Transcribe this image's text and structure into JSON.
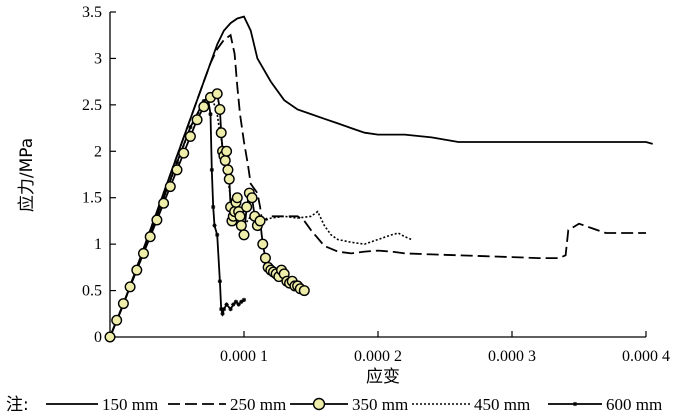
{
  "chart_data": {
    "type": "line",
    "xlabel": "应变",
    "ylabel": "应力/MPa",
    "xlim": [
      0,
      0.0004
    ],
    "ylim": [
      0,
      3.5
    ],
    "x_ticks": [
      {
        "value": 0.0001,
        "label": "0.000 1"
      },
      {
        "value": 0.0002,
        "label": "0.000 2"
      },
      {
        "value": 0.0003,
        "label": "0.000 3"
      },
      {
        "value": 0.0004,
        "label": "0.000 4"
      }
    ],
    "y_ticks": [
      {
        "value": 0,
        "label": "0"
      },
      {
        "value": 0.5,
        "label": "0.5"
      },
      {
        "value": 1,
        "label": "1"
      },
      {
        "value": 1.5,
        "label": "1.5"
      },
      {
        "value": 2,
        "label": "2"
      },
      {
        "value": 2.5,
        "label": "2.5"
      },
      {
        "value": 3,
        "label": "3"
      },
      {
        "value": 3.5,
        "label": "3.5"
      }
    ],
    "grid": false,
    "legend_prefix": "注:",
    "legend_position": "bottom",
    "series": [
      {
        "name": "150 mm",
        "style": "solid",
        "x": [
          0,
          1e-05,
          2e-05,
          3e-05,
          4e-05,
          5e-05,
          6e-05,
          7e-05,
          7.5e-05,
          8e-05,
          8.5e-05,
          9e-05,
          9.5e-05,
          0.0001,
          0.000105,
          0.00011,
          0.00012,
          0.00013,
          0.00014,
          0.00015,
          0.00016,
          0.00017,
          0.00018,
          0.00019,
          0.0002,
          0.00021,
          0.00022,
          0.00024,
          0.00026,
          0.0003,
          0.00035,
          0.0004,
          0.000405
        ],
        "y": [
          0,
          0.35,
          0.75,
          1.15,
          1.55,
          1.95,
          2.35,
          2.75,
          2.95,
          3.15,
          3.3,
          3.38,
          3.43,
          3.45,
          3.3,
          3.0,
          2.75,
          2.55,
          2.45,
          2.4,
          2.35,
          2.3,
          2.25,
          2.2,
          2.18,
          2.18,
          2.18,
          2.15,
          2.1,
          2.1,
          2.1,
          2.1,
          2.08
        ]
      },
      {
        "name": "250 mm",
        "style": "dash",
        "x": [
          0,
          1e-05,
          2e-05,
          3e-05,
          4e-05,
          5e-05,
          6e-05,
          7e-05,
          7.5e-05,
          8e-05,
          8.5e-05,
          9e-05,
          9.3e-05,
          9.5e-05,
          9.7e-05,
          0.0001,
          0.000103,
          0.000105,
          0.00011,
          0.000112,
          0.000113,
          0.000114,
          0.00012,
          0.00013,
          0.00014,
          0.000145,
          0.00015,
          0.00016,
          0.00017,
          0.00018,
          0.00019,
          0.0002,
          0.00021,
          0.00022,
          0.00024,
          0.00026,
          0.00028,
          0.0003,
          0.00032,
          0.000335,
          0.00034,
          0.000342,
          0.00035,
          0.00036,
          0.00037,
          0.00038,
          0.0004
        ],
        "y": [
          0,
          0.35,
          0.75,
          1.15,
          1.55,
          1.95,
          2.35,
          2.75,
          2.95,
          3.1,
          3.2,
          3.25,
          3.05,
          2.7,
          2.4,
          2.1,
          1.85,
          1.65,
          1.55,
          1.4,
          1.3,
          1.25,
          1.3,
          1.3,
          1.3,
          1.25,
          1.15,
          0.98,
          0.92,
          0.9,
          0.92,
          0.93,
          0.92,
          0.9,
          0.89,
          0.88,
          0.87,
          0.86,
          0.85,
          0.85,
          0.88,
          1.15,
          1.22,
          1.17,
          1.12,
          1.12,
          1.12
        ]
      },
      {
        "name": "350 mm",
        "style": "circle",
        "x": [
          0,
          5e-06,
          1e-05,
          1.5e-05,
          2e-05,
          2.5e-05,
          3e-05,
          3.5e-05,
          4e-05,
          4.5e-05,
          5e-05,
          5.5e-05,
          6e-05,
          6.5e-05,
          7e-05,
          7.5e-05,
          8e-05,
          8.2e-05,
          8.3e-05,
          8.4e-05,
          8.5e-05,
          8.6e-05,
          8.7e-05,
          8.8e-05,
          8.9e-05,
          9e-05,
          9.1e-05,
          9.2e-05,
          9.3e-05,
          9.4e-05,
          9.5e-05,
          9.6e-05,
          9.7e-05,
          9.8e-05,
          0.0001,
          0.000102,
          0.000104,
          0.000106,
          0.000108,
          0.00011,
          0.000112,
          0.000114,
          0.000116,
          0.000118,
          0.00012,
          0.000122,
          0.000124,
          0.000126,
          0.000128,
          0.00013,
          0.000132,
          0.000134,
          0.000136,
          0.000138,
          0.00014,
          0.000142,
          0.000145
        ],
        "y": [
          0,
          0.18,
          0.36,
          0.54,
          0.72,
          0.9,
          1.08,
          1.26,
          1.44,
          1.62,
          1.8,
          1.98,
          2.16,
          2.34,
          2.48,
          2.58,
          2.62,
          2.45,
          2.2,
          2.0,
          1.95,
          1.9,
          2.0,
          1.8,
          1.7,
          1.4,
          1.25,
          1.3,
          1.35,
          1.45,
          1.5,
          1.35,
          1.3,
          1.2,
          1.1,
          1.4,
          1.55,
          1.5,
          1.3,
          1.2,
          1.25,
          1.0,
          0.85,
          0.75,
          0.72,
          0.7,
          0.68,
          0.65,
          0.72,
          0.68,
          0.6,
          0.58,
          0.6,
          0.55,
          0.55,
          0.52,
          0.5
        ]
      },
      {
        "name": "450 mm",
        "style": "dot",
        "x": [
          0,
          1e-05,
          2e-05,
          3e-05,
          4e-05,
          5e-05,
          6e-05,
          7e-05,
          7.5e-05,
          7.8e-05,
          8e-05,
          8.2e-05,
          8.5e-05,
          8.8e-05,
          9e-05,
          9.2e-05,
          9.5e-05,
          0.0001,
          0.000105,
          0.00011,
          0.000115,
          0.00012,
          0.00013,
          0.00014,
          0.00015,
          0.000155,
          0.00016,
          0.000165,
          0.00017,
          0.00018,
          0.00019,
          0.0002,
          0.00021,
          0.000215,
          0.00022,
          0.000225
        ],
        "y": [
          0,
          0.35,
          0.73,
          1.11,
          1.49,
          1.87,
          2.25,
          2.52,
          2.58,
          2.5,
          2.4,
          2.2,
          2.0,
          1.7,
          1.5,
          1.35,
          1.3,
          1.2,
          1.3,
          1.3,
          1.25,
          1.28,
          1.3,
          1.28,
          1.3,
          1.35,
          1.2,
          1.1,
          1.05,
          1.02,
          1.0,
          1.05,
          1.1,
          1.12,
          1.08,
          1.05
        ]
      },
      {
        "name": "600 mm",
        "style": "star",
        "x": [
          0,
          1e-05,
          2e-05,
          3e-05,
          4e-05,
          5e-05,
          6e-05,
          7e-05,
          7.3e-05,
          7.5e-05,
          7.6e-05,
          7.7e-05,
          7.8e-05,
          8e-05,
          8.2e-05,
          8.3e-05,
          8.4e-05,
          8.5e-05,
          8.7e-05,
          9e-05,
          9.2e-05,
          9.4e-05,
          9.6e-05,
          9.8e-05,
          0.0001
        ],
        "y": [
          0,
          0.36,
          0.74,
          1.12,
          1.5,
          1.88,
          2.26,
          2.54,
          2.58,
          2.4,
          1.8,
          1.4,
          1.2,
          1.1,
          0.6,
          0.3,
          0.25,
          0.3,
          0.35,
          0.3,
          0.35,
          0.38,
          0.35,
          0.38,
          0.4
        ]
      }
    ]
  }
}
